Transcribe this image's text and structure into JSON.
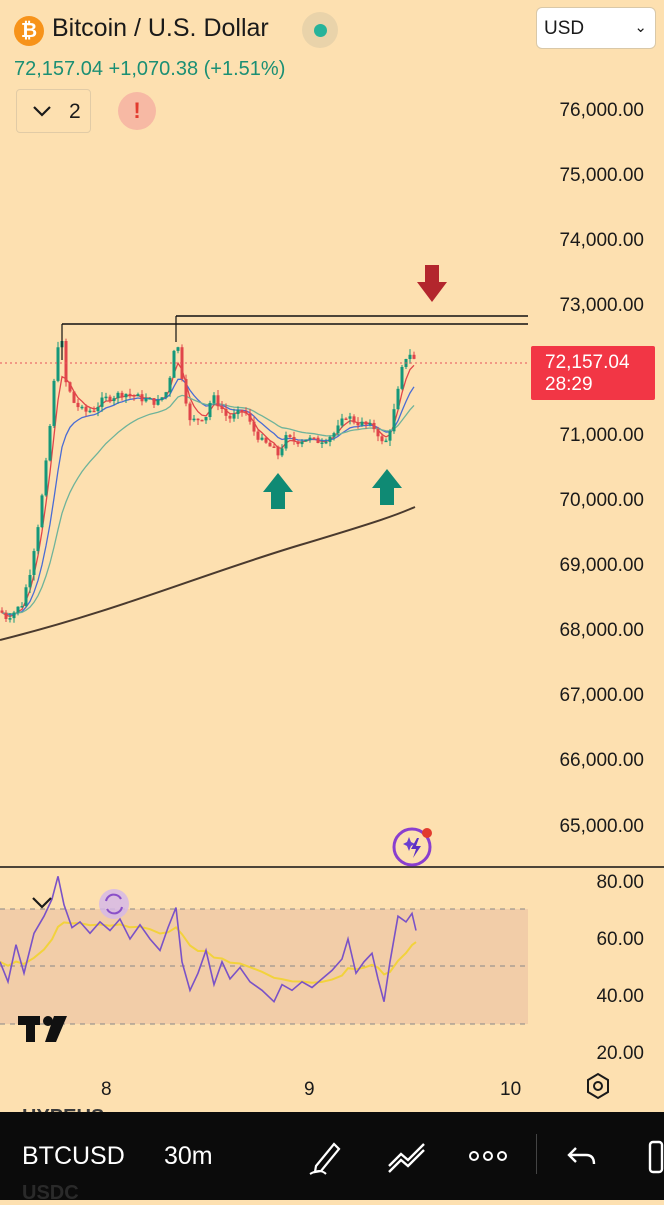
{
  "header": {
    "logo_glyph": "₿",
    "title": "Bitcoin / U.S. Dollar",
    "status_color": "#26b39a",
    "price": "72,157.04",
    "change": "+1,070.38",
    "change_pct": "(+1.51%)",
    "currency": "USD",
    "indicators_count": "2",
    "alert_glyph": "!"
  },
  "price_axis": {
    "labels": [
      "76,000.00",
      "75,000.00",
      "74,000.00",
      "73,000.00",
      "71,000.00",
      "70,000.00",
      "69,000.00",
      "68,000.00",
      "67,000.00",
      "66,000.00",
      "65,000.00"
    ],
    "current_price": "72,157.04",
    "countdown": "28:29"
  },
  "rsi_axis": {
    "labels": [
      "80.00",
      "60.00",
      "40.00",
      "20.00"
    ]
  },
  "time_axis": {
    "labels": [
      "8",
      "9",
      "10"
    ]
  },
  "toolbar": {
    "symbol": "BTCUSD",
    "interval": "30m",
    "ghost_top": "HYPEUS",
    "ghost_bottom": "USDC"
  },
  "colors": {
    "background": "#fde0b0",
    "up": "#15977a",
    "down": "#e0454a",
    "current_price": "#f23645",
    "up_arrow": "#0f8a74",
    "down_arrow": "#b3262d"
  },
  "chart_data": {
    "type": "candlestick",
    "symbol": "BTCUSD",
    "interval": "30m",
    "y_range": [
      64500,
      76500
    ],
    "x_ticks": [
      "8",
      "9",
      "10"
    ],
    "current_price": 72157.04,
    "resistance_levels": [
      72850,
      72780
    ],
    "support_markers": [
      "up-arrow",
      "up-arrow"
    ],
    "resistance_marker": "down-arrow",
    "moving_averages": 4,
    "rsi": {
      "range": [
        20,
        80
      ],
      "bands": [
        70,
        50,
        30
      ]
    }
  }
}
